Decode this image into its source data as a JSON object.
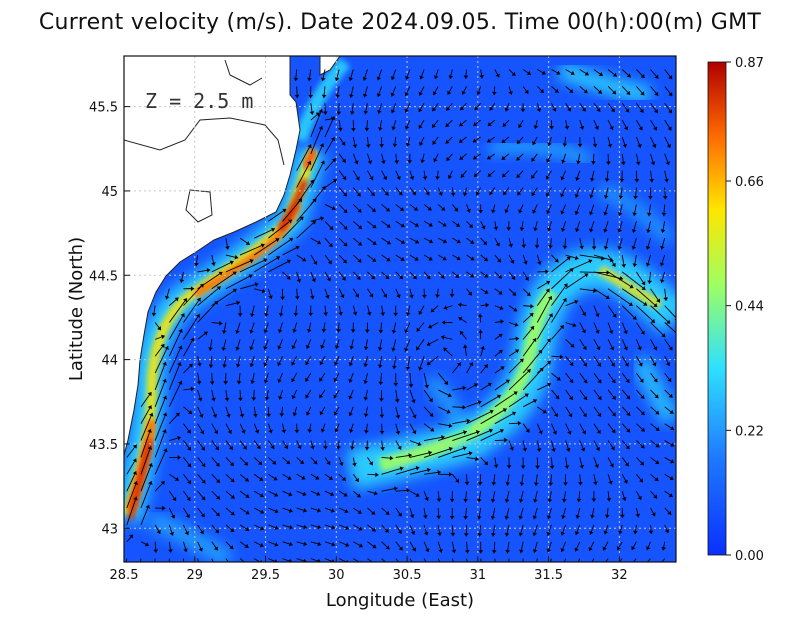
{
  "title": "Current velocity (m/s). Date 2024.09.05. Time 00(h):00(m) GMT",
  "depth_label": "Z = 2.5 m",
  "xlabel": "Longitude (East)",
  "ylabel": "Latitude (North)",
  "chart_data": {
    "type": "heatmap",
    "title": "Current velocity (m/s). Date 2024.09.05. Time 00(h):00(m) GMT",
    "xlabel": "Longitude (East)",
    "ylabel": "Latitude (North)",
    "xlim": [
      28.5,
      32.4
    ],
    "ylim": [
      42.8,
      45.8
    ],
    "x_ticks": [
      "28.5",
      "29",
      "29.5",
      "30",
      "30.5",
      "31",
      "31.5",
      "32"
    ],
    "x_tick_values": [
      28.5,
      29,
      29.5,
      30,
      30.5,
      31,
      31.5,
      32
    ],
    "y_ticks": [
      "43",
      "43.5",
      "44",
      "44.5",
      "45",
      "45.5"
    ],
    "y_tick_values": [
      43,
      43.5,
      44,
      44.5,
      45,
      45.5
    ],
    "grid": true,
    "colorbar": {
      "min": 0.0,
      "max": 0.87,
      "tick_labels": [
        "0.87",
        "0.66",
        "0.44",
        "0.22",
        "0.00"
      ],
      "tick_values": [
        0.87,
        0.66,
        0.44,
        0.22,
        0.0
      ],
      "colors": [
        "#0a2fff",
        "#1f7bff",
        "#2fe0ff",
        "#9fff60",
        "#ffe600",
        "#ff6a00",
        "#b00000"
      ]
    },
    "ocean_color": "#1554ff",
    "land_color": "#ffffff",
    "grid_color": "#c8c8c8",
    "arrow_color": "#000000",
    "jets": [
      {
        "name": "",
        "points": [
          [
            28.55,
            43.05
          ],
          [
            28.65,
            43.4
          ],
          [
            28.75,
            43.8
          ],
          [
            28.9,
            44.2
          ],
          [
            29.1,
            44.4
          ],
          [
            29.45,
            44.6
          ],
          [
            29.65,
            44.8
          ],
          [
            29.78,
            45.05
          ],
          [
            29.85,
            45.3
          ]
        ],
        "speed": 0.8
      },
      {
        "name": "",
        "points": [
          [
            30.35,
            43.3
          ],
          [
            30.7,
            43.45
          ],
          [
            31.0,
            43.6
          ],
          [
            31.3,
            43.85
          ],
          [
            31.45,
            44.2
          ],
          [
            31.55,
            44.45
          ],
          [
            31.75,
            44.55
          ],
          [
            32.0,
            44.45
          ],
          [
            32.3,
            44.25
          ]
        ],
        "speed": 0.45
      }
    ]
  },
  "icons": {
    "coastline": "coastline-shape",
    "vector_field": "current-arrows"
  }
}
